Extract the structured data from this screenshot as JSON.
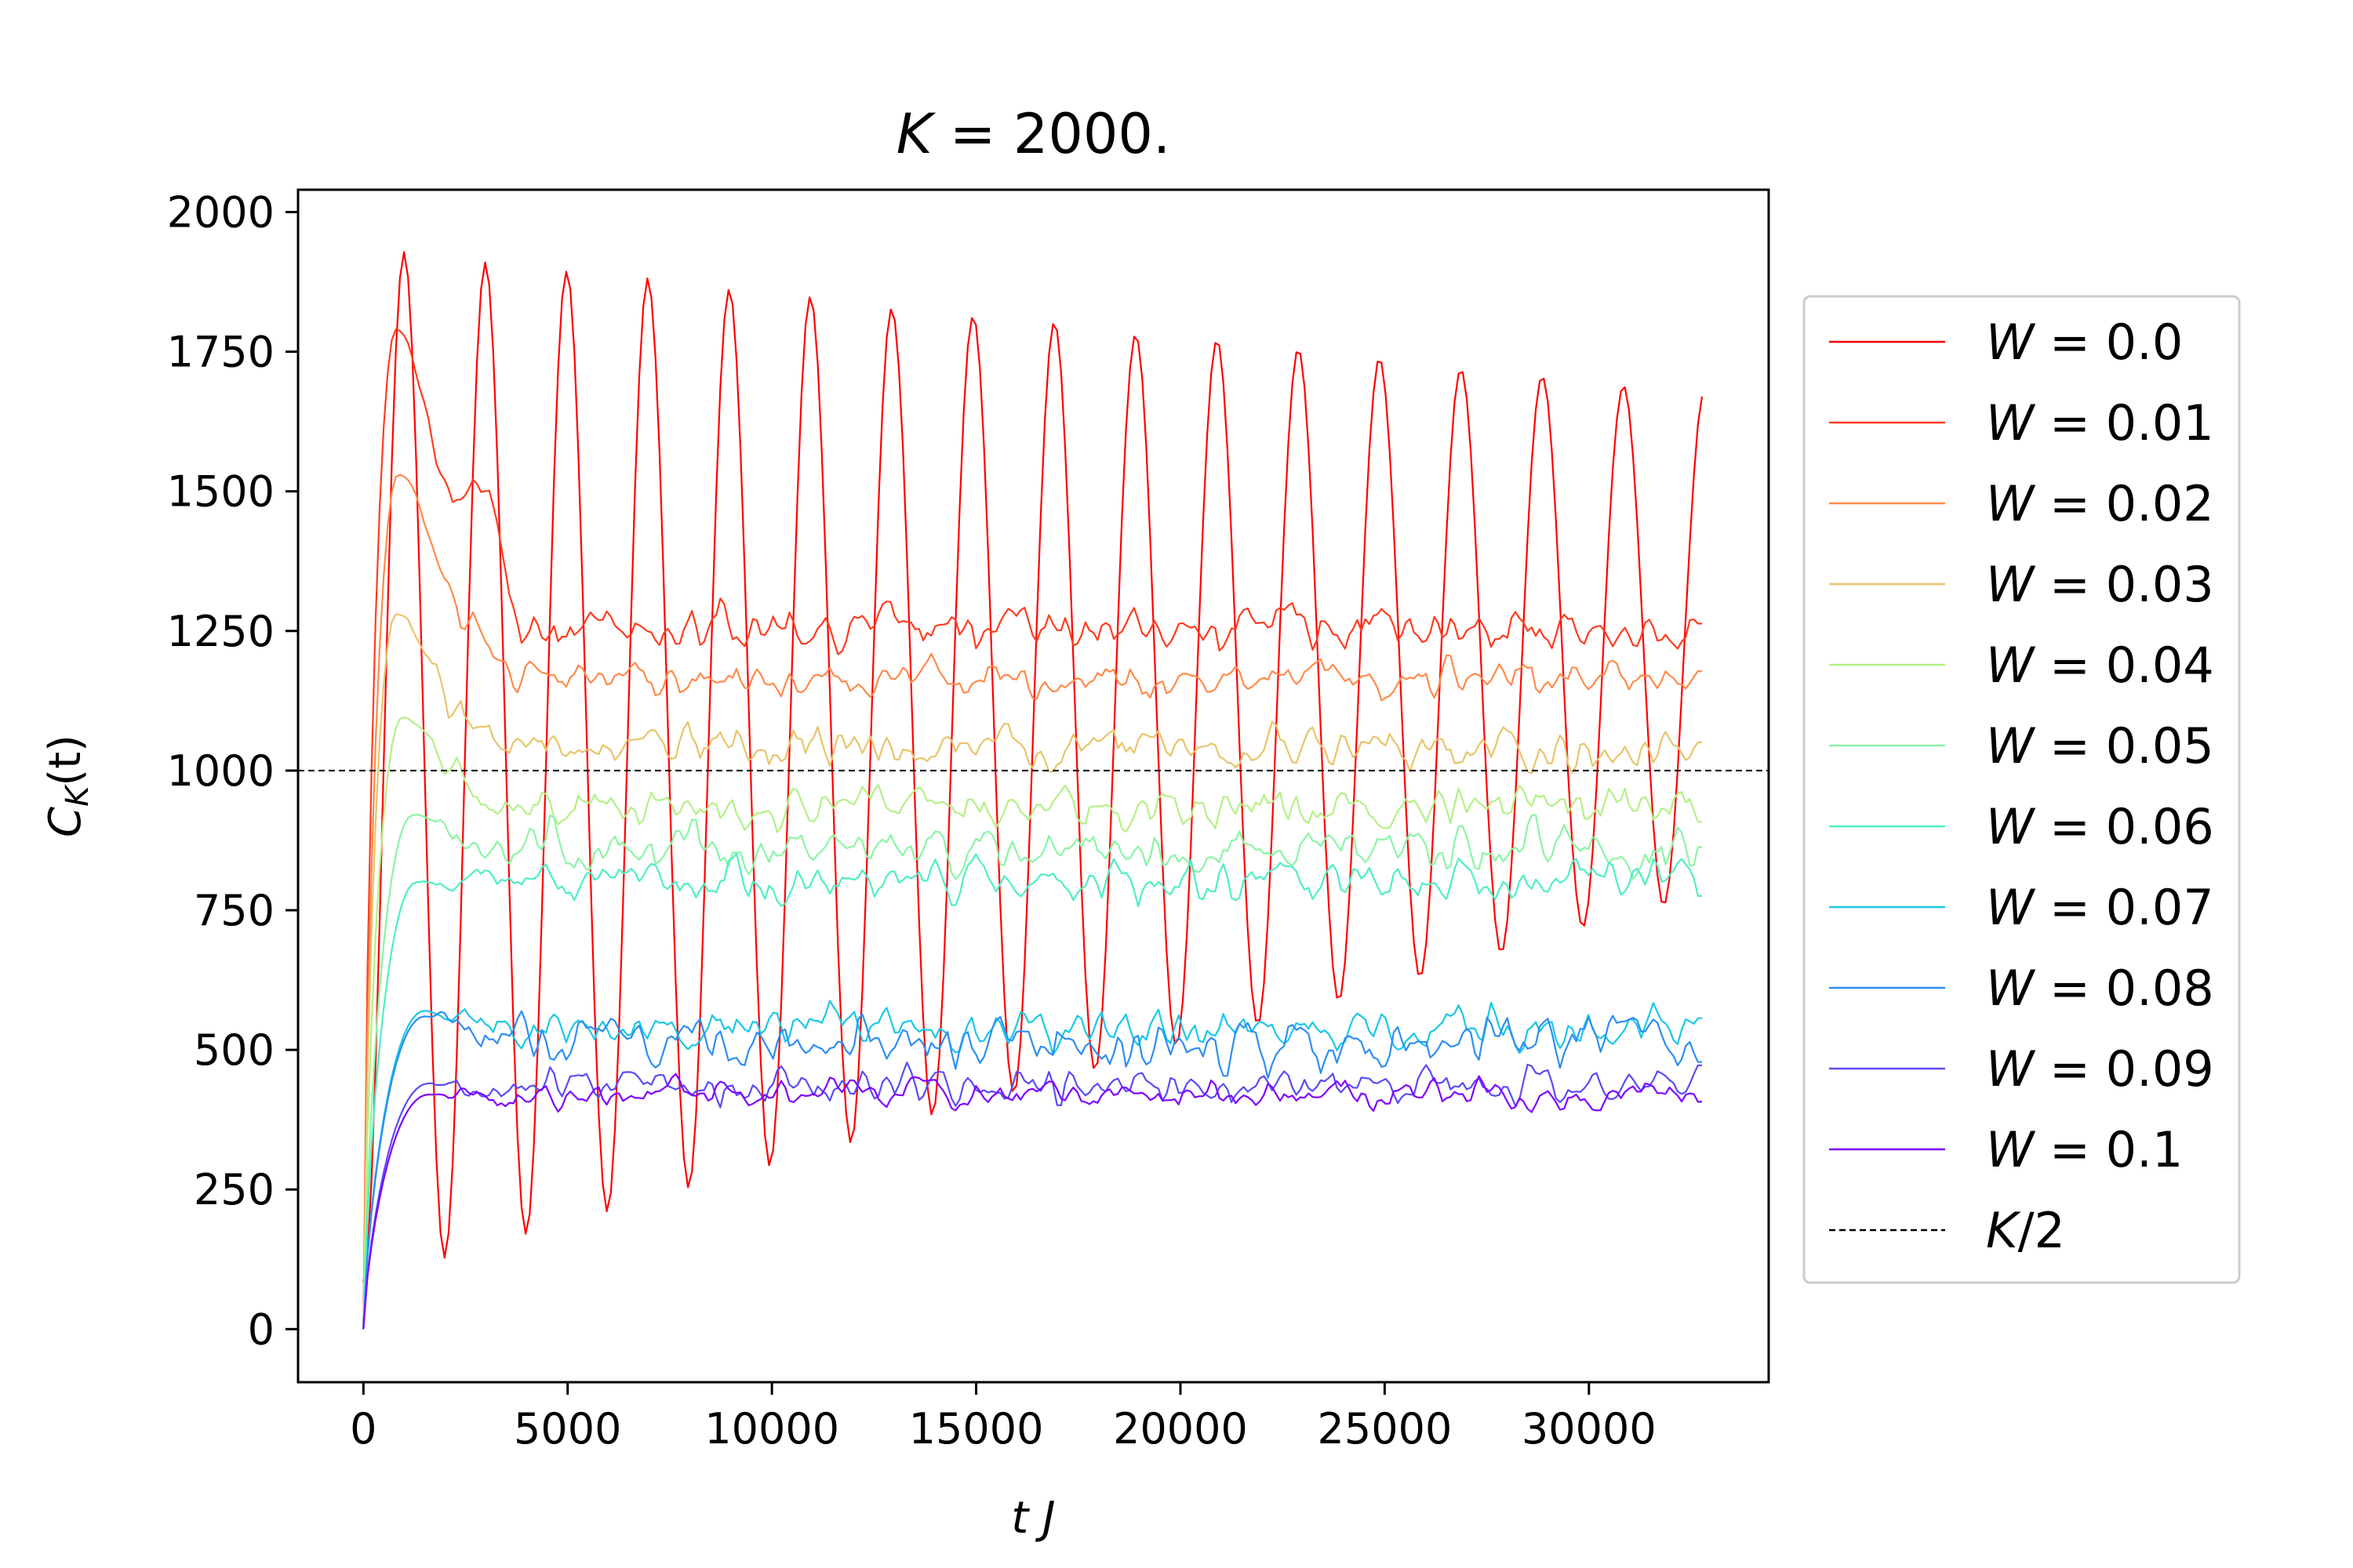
{
  "chart_data": {
    "type": "line",
    "title": "K = 2000.",
    "title_parts": {
      "var": "K",
      "rest": " = 2000."
    },
    "xlabel": "t J",
    "ylabel": "C_K(t)",
    "ylabel_parts": {
      "main": "C",
      "sub": "K",
      "rest": "(t)"
    },
    "xlim": [
      -1600,
      34400
    ],
    "ylim": [
      -95,
      2040
    ],
    "xticks": [
      0,
      5000,
      10000,
      15000,
      20000,
      25000,
      30000
    ],
    "xtick_labels": [
      "0",
      "5000",
      "10000",
      "15000",
      "20000",
      "25000",
      "30000"
    ],
    "yticks": [
      0,
      250,
      500,
      750,
      1000,
      1250,
      1500,
      1750,
      2000
    ],
    "ytick_labels": [
      "0",
      "250",
      "500",
      "750",
      "1000",
      "1250",
      "1500",
      "1750",
      "2000"
    ],
    "t_max": 32768,
    "num_points": 330,
    "legend_position": "outside-right",
    "reference_line": {
      "name": "K/2",
      "label_var": "K",
      "label_rest": "/2",
      "value": 1000,
      "color": "#000000",
      "style": "dashed"
    },
    "series": [
      {
        "name": "W = 0.0",
        "label_var": "W",
        "label_rest": " = 0.0",
        "color": "#ff0000",
        "model": "oscillating",
        "initial_peak": 1935,
        "period": 1990,
        "peak_decay": 260,
        "trough_start": 85,
        "trough_end": 780,
        "ripple": 8
      },
      {
        "name": "W = 0.01",
        "label_var": "W",
        "label_rest": " = 0.01",
        "color": "#ff3c1f",
        "model": "relax",
        "peak": 1790,
        "peak_time": 800,
        "second_peak": 1470,
        "second_peak_time": 2950,
        "plateau": 1255,
        "ripple": 35
      },
      {
        "name": "W = 0.02",
        "label_var": "W",
        "label_rest": " = 0.02",
        "color": "#ff8a4a",
        "model": "relax",
        "peak": 1530,
        "peak_time": 850,
        "second_peak": 1200,
        "second_peak_time": 2900,
        "plateau": 1165,
        "ripple": 30
      },
      {
        "name": "W = 0.03",
        "label_var": "W",
        "label_rest": " = 0.03",
        "color": "#e8c46a",
        "model": "relax",
        "peak": 1280,
        "peak_time": 800,
        "plateau": 1045,
        "ripple": 35
      },
      {
        "name": "W = 0.04",
        "label_var": "W",
        "label_rest": " = 0.04",
        "color": "#b4f085",
        "model": "relax",
        "peak": 1095,
        "peak_time": 950,
        "plateau": 935,
        "ripple": 35
      },
      {
        "name": "W = 0.05",
        "label_var": "W",
        "label_rest": " = 0.05",
        "color": "#8af5a5",
        "model": "relax",
        "peak": 920,
        "peak_time": 1200,
        "plateau": 860,
        "ripple": 40
      },
      {
        "name": "W = 0.06",
        "label_var": "W",
        "label_rest": " = 0.06",
        "color": "#4eeec6",
        "model": "relax",
        "peak": 800,
        "peak_time": 1300,
        "plateau": 805,
        "ripple": 35
      },
      {
        "name": "W = 0.07",
        "label_var": "W",
        "label_rest": " = 0.07",
        "color": "#18c8e8",
        "model": "relax",
        "peak": 570,
        "peak_time": 1500,
        "plateau": 540,
        "ripple": 35
      },
      {
        "name": "W = 0.08",
        "label_var": "W",
        "label_rest": " = 0.08",
        "color": "#2c8ef2",
        "model": "relax",
        "peak": 560,
        "peak_time": 1500,
        "plateau": 515,
        "ripple": 40
      },
      {
        "name": "W = 0.09",
        "label_var": "W",
        "label_rest": " = 0.09",
        "color": "#5a4cf5",
        "model": "relax",
        "peak": 440,
        "peak_time": 1600,
        "plateau": 435,
        "ripple": 30
      },
      {
        "name": "W = 0.1",
        "label_var": "W",
        "label_rest": " = 0.1",
        "color": "#8000ff",
        "model": "relax",
        "peak": 420,
        "peak_time": 1600,
        "plateau": 420,
        "ripple": 25
      }
    ]
  }
}
